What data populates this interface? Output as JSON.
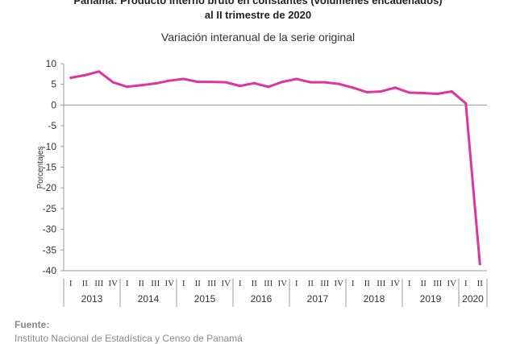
{
  "header": {
    "title_line1": "Panamá: Producto interno bruto en constantes (volúmenes encadenados)",
    "title_line2": "al II trimestre de 2020",
    "subtitle": "Variación interanual de la serie original"
  },
  "source": {
    "label": "Fuente:",
    "text": "Instituto Nacional de Estadística y Censo de Panamá"
  },
  "colors": {
    "line": "#e0339f",
    "axis": "#9a9a9a",
    "gridline": "#cfcfcf"
  },
  "chart_data": {
    "type": "line",
    "ylabel": "Porcentajes",
    "xlabel": "",
    "ylim": [
      -40,
      10
    ],
    "yticks": [
      10,
      5,
      0,
      -5,
      -10,
      -15,
      -20,
      -25,
      -30,
      -35,
      -40
    ],
    "years": [
      "2013",
      "2014",
      "2015",
      "2016",
      "2017",
      "2018",
      "2019",
      "2020"
    ],
    "quarter_labels": [
      "I",
      "II",
      "III",
      "IV"
    ],
    "categories": [
      "2013 I",
      "2013 II",
      "2013 III",
      "2013 IV",
      "2014 I",
      "2014 II",
      "2014 III",
      "2014 IV",
      "2015 I",
      "2015 II",
      "2015 III",
      "2015 IV",
      "2016 I",
      "2016 II",
      "2016 III",
      "2016 IV",
      "2017 I",
      "2017 II",
      "2017 III",
      "2017 IV",
      "2018 I",
      "2018 II",
      "2018 III",
      "2018 IV",
      "2019 I",
      "2019 II",
      "2019 III",
      "2019 IV",
      "2020 I",
      "2020 II"
    ],
    "values": [
      6.6,
      7.2,
      8.1,
      5.5,
      4.4,
      4.8,
      5.2,
      5.9,
      6.3,
      5.6,
      5.6,
      5.5,
      4.6,
      5.3,
      4.4,
      5.6,
      6.3,
      5.5,
      5.5,
      5.1,
      4.2,
      3.1,
      3.3,
      4.2,
      3.0,
      2.9,
      2.7,
      3.3,
      0.4,
      -38.4
    ],
    "grid": false
  }
}
